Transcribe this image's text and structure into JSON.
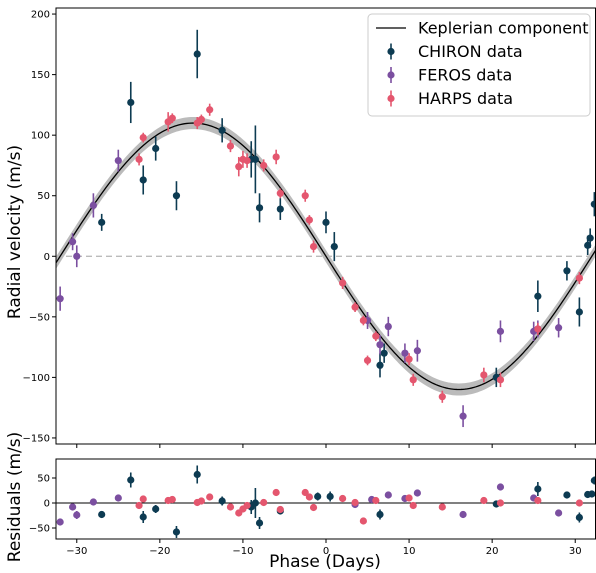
{
  "chart_data": [
    {
      "type": "scatter",
      "panel": "radial-velocity",
      "xlabel": "",
      "ylabel": "Radial velocity (m/s)",
      "xlim": [
        -32.5,
        32.5
      ],
      "ylim": [
        -155,
        205
      ],
      "x_ticks": [
        -30,
        -20,
        -10,
        0,
        10,
        20,
        30
      ],
      "x_tick_labels": [
        "",
        "",
        "",
        "",
        "",
        "",
        ""
      ],
      "y_ticks": [
        -150,
        -100,
        -50,
        0,
        50,
        100,
        150,
        200
      ],
      "y_tick_labels": [
        "−150",
        "−100",
        "−50",
        "0",
        "50",
        "100",
        "150",
        "200"
      ],
      "grid": false,
      "zero_line": "dashed gray",
      "legend": {
        "placement": "top-right",
        "entries": [
          "Keplerian component",
          "CHIRON data",
          "FEROS data",
          "HARPS data"
        ]
      },
      "model": {
        "name": "Keplerian component",
        "color": "#000000",
        "band_color": "#bbbbbb",
        "amplitude": 110,
        "period": 64,
        "phase_zero": 0,
        "band_halfwidth": 5
      },
      "series": [
        {
          "name": "CHIRON data",
          "color": "#0d3b52",
          "points": [
            {
              "x": -27,
              "y": 28,
              "err": 7
            },
            {
              "x": -23.5,
              "y": 127,
              "err": 17
            },
            {
              "x": -22,
              "y": 63,
              "err": 12
            },
            {
              "x": -20.5,
              "y": 89,
              "err": 10
            },
            {
              "x": -18,
              "y": 50,
              "err": 12
            },
            {
              "x": -15.5,
              "y": 167,
              "err": 20
            },
            {
              "x": -12.5,
              "y": 104,
              "err": 10
            },
            {
              "x": -9,
              "y": 80,
              "err": 15
            },
            {
              "x": -8.5,
              "y": 80,
              "err": 28
            },
            {
              "x": -8,
              "y": 40,
              "err": 12
            },
            {
              "x": -5.5,
              "y": 39,
              "err": 9
            },
            {
              "x": 0,
              "y": 28,
              "err": 9
            },
            {
              "x": 1,
              "y": 8,
              "err": 12
            },
            {
              "x": 6.5,
              "y": -90,
              "err": 10
            },
            {
              "x": 7,
              "y": -80,
              "err": 8
            },
            {
              "x": 20.5,
              "y": -100,
              "err": 8
            },
            {
              "x": 25.5,
              "y": -33,
              "err": 13
            },
            {
              "x": 29,
              "y": -12,
              "err": 8
            },
            {
              "x": 30.5,
              "y": -46,
              "err": 12
            },
            {
              "x": 31.5,
              "y": 9,
              "err": 8
            },
            {
              "x": 31.8,
              "y": 15,
              "err": 8
            },
            {
              "x": 32.3,
              "y": 43,
              "err": 10
            }
          ]
        },
        {
          "name": "FEROS data",
          "color": "#7b4fa0",
          "points": [
            {
              "x": -32,
              "y": -35,
              "err": 10
            },
            {
              "x": -30.5,
              "y": 12,
              "err": 7
            },
            {
              "x": -30,
              "y": 0,
              "err": 9
            },
            {
              "x": -28,
              "y": 42,
              "err": 10
            },
            {
              "x": -25,
              "y": 79,
              "err": 9
            },
            {
              "x": 5,
              "y": -53,
              "err": 7
            },
            {
              "x": 6.5,
              "y": -73,
              "err": 8
            },
            {
              "x": 7.5,
              "y": -58,
              "err": 8
            },
            {
              "x": 9.5,
              "y": -80,
              "err": 8
            },
            {
              "x": 11,
              "y": -78,
              "err": 9
            },
            {
              "x": 16.5,
              "y": -132,
              "err": 9
            },
            {
              "x": 21,
              "y": -62,
              "err": 9
            },
            {
              "x": 25,
              "y": -62,
              "err": 8
            },
            {
              "x": 25.5,
              "y": -60,
              "err": 7
            },
            {
              "x": 28,
              "y": -59,
              "err": 8
            }
          ]
        },
        {
          "name": "HARPS data",
          "color": "#e4566e",
          "points": [
            {
              "x": -22.5,
              "y": 80,
              "err": 5
            },
            {
              "x": -22,
              "y": 98,
              "err": 4
            },
            {
              "x": -19,
              "y": 111,
              "err": 8
            },
            {
              "x": -18.5,
              "y": 114,
              "err": 4
            },
            {
              "x": -15.5,
              "y": 110,
              "err": 5
            },
            {
              "x": -15,
              "y": 113,
              "err": 4
            },
            {
              "x": -14,
              "y": 121,
              "err": 5
            },
            {
              "x": -11.5,
              "y": 91,
              "err": 5
            },
            {
              "x": -10.5,
              "y": 74,
              "err": 8
            },
            {
              "x": -10,
              "y": 80,
              "err": 7
            },
            {
              "x": -9.5,
              "y": 79,
              "err": 6
            },
            {
              "x": -7.5,
              "y": 75,
              "err": 5
            },
            {
              "x": -6,
              "y": 82,
              "err": 6
            },
            {
              "x": -5.5,
              "y": 52,
              "err": 4
            },
            {
              "x": -2.5,
              "y": 50,
              "err": 5
            },
            {
              "x": -2,
              "y": 30,
              "err": 4
            },
            {
              "x": -1.5,
              "y": 8,
              "err": 5
            },
            {
              "x": 2,
              "y": -22,
              "err": 5
            },
            {
              "x": 3.5,
              "y": -42,
              "err": 4
            },
            {
              "x": 4.5,
              "y": -53,
              "err": 4
            },
            {
              "x": 5,
              "y": -86,
              "err": 4
            },
            {
              "x": 6,
              "y": -66,
              "err": 4
            },
            {
              "x": 10,
              "y": -85,
              "err": 5
            },
            {
              "x": 10.5,
              "y": -102,
              "err": 5
            },
            {
              "x": 14,
              "y": -116,
              "err": 5
            },
            {
              "x": 19,
              "y": -98,
              "err": 6
            },
            {
              "x": 21,
              "y": -102,
              "err": 6
            },
            {
              "x": 25.5,
              "y": -60,
              "err": 5
            },
            {
              "x": 30.5,
              "y": -18,
              "err": 5
            }
          ]
        }
      ]
    },
    {
      "type": "scatter",
      "panel": "residuals",
      "xlabel": "Phase (Days)",
      "ylabel": "Residuals (m/s)",
      "xlim": [
        -32.5,
        32.5
      ],
      "ylim": [
        -72,
        88
      ],
      "x_ticks": [
        -30,
        -20,
        -10,
        0,
        10,
        20,
        30
      ],
      "x_tick_labels": [
        "−30",
        "−20",
        "−10",
        "0",
        "10",
        "20",
        "30"
      ],
      "y_ticks": [
        -50,
        0,
        50
      ],
      "y_tick_labels": [
        "−50",
        "0",
        "50"
      ],
      "grid": false,
      "zero_line": "solid black",
      "series": [
        {
          "name": "CHIRON data",
          "color": "#0d3b52",
          "points": [
            {
              "x": -27,
              "y": -23,
              "err": 7
            },
            {
              "x": -23.5,
              "y": 46,
              "err": 15
            },
            {
              "x": -22,
              "y": -28,
              "err": 12
            },
            {
              "x": -20.5,
              "y": -12,
              "err": 8
            },
            {
              "x": -18,
              "y": -58,
              "err": 12
            },
            {
              "x": -15.5,
              "y": 57,
              "err": 18
            },
            {
              "x": -12.5,
              "y": 4,
              "err": 9
            },
            {
              "x": -9,
              "y": -8,
              "err": 14
            },
            {
              "x": -8.5,
              "y": 0,
              "err": 30
            },
            {
              "x": -8,
              "y": -40,
              "err": 12
            },
            {
              "x": -5.5,
              "y": -16,
              "err": 7
            },
            {
              "x": -1,
              "y": 13,
              "err": 8
            },
            {
              "x": 0.5,
              "y": 13,
              "err": 10
            },
            {
              "x": 6.5,
              "y": -23,
              "err": 10
            },
            {
              "x": 20.5,
              "y": -2,
              "err": 7
            },
            {
              "x": 25.5,
              "y": 28,
              "err": 14
            },
            {
              "x": 29,
              "y": 16,
              "err": 7
            },
            {
              "x": 30.5,
              "y": -29,
              "err": 10
            },
            {
              "x": 31.5,
              "y": 17,
              "err": 7
            },
            {
              "x": 32,
              "y": 18,
              "err": 7
            },
            {
              "x": 32.3,
              "y": 45,
              "err": 8
            }
          ]
        },
        {
          "name": "FEROS data",
          "color": "#7b4fa0",
          "points": [
            {
              "x": -32,
              "y": -38,
              "err": 7
            },
            {
              "x": -30.5,
              "y": -8,
              "err": 5
            },
            {
              "x": -30,
              "y": -24,
              "err": 8
            },
            {
              "x": -28,
              "y": 2,
              "err": 7
            },
            {
              "x": -25,
              "y": 10,
              "err": 7
            },
            {
              "x": 3.5,
              "y": -3,
              "err": 5
            },
            {
              "x": 5.5,
              "y": 7,
              "err": 5
            },
            {
              "x": 7.5,
              "y": 16,
              "err": 7
            },
            {
              "x": 9.5,
              "y": 9,
              "err": 6
            },
            {
              "x": 11,
              "y": 20,
              "err": 7
            },
            {
              "x": 16.5,
              "y": -23,
              "err": 7
            },
            {
              "x": 21,
              "y": 32,
              "err": 7
            },
            {
              "x": 25,
              "y": 10,
              "err": 6
            },
            {
              "x": 28,
              "y": -20,
              "err": 7
            }
          ]
        },
        {
          "name": "HARPS data",
          "color": "#e4566e",
          "points": [
            {
              "x": -22.5,
              "y": -5,
              "err": 4
            },
            {
              "x": -22,
              "y": 8,
              "err": 4
            },
            {
              "x": -19,
              "y": 5,
              "err": 5
            },
            {
              "x": -18.5,
              "y": 7,
              "err": 4
            },
            {
              "x": -15.5,
              "y": 1,
              "err": 4
            },
            {
              "x": -15,
              "y": 4,
              "err": 4
            },
            {
              "x": -14,
              "y": 12,
              "err": 4
            },
            {
              "x": -11.5,
              "y": -8,
              "err": 4
            },
            {
              "x": -10.5,
              "y": -20,
              "err": 6
            },
            {
              "x": -10,
              "y": -12,
              "err": 6
            },
            {
              "x": -9.5,
              "y": -5,
              "err": 5
            },
            {
              "x": -7.5,
              "y": 1,
              "err": 4
            },
            {
              "x": -6,
              "y": 21,
              "err": 5
            },
            {
              "x": -5.5,
              "y": -13,
              "err": 4
            },
            {
              "x": -2.5,
              "y": 21,
              "err": 4
            },
            {
              "x": -2,
              "y": 12,
              "err": 4
            },
            {
              "x": -1.5,
              "y": -9,
              "err": 4
            },
            {
              "x": 2,
              "y": 9,
              "err": 4
            },
            {
              "x": 3.5,
              "y": 1,
              "err": 4
            },
            {
              "x": 4.5,
              "y": -36,
              "err": 4
            },
            {
              "x": 6,
              "y": 5,
              "err": 4
            },
            {
              "x": 10,
              "y": 10,
              "err": 4
            },
            {
              "x": 10.5,
              "y": -5,
              "err": 4
            },
            {
              "x": 14,
              "y": -8,
              "err": 4
            },
            {
              "x": 19,
              "y": 5,
              "err": 4
            },
            {
              "x": 21,
              "y": 0,
              "err": 4
            },
            {
              "x": 25.5,
              "y": 5,
              "err": 4
            },
            {
              "x": 30.5,
              "y": 0,
              "err": 4
            }
          ]
        }
      ]
    }
  ]
}
